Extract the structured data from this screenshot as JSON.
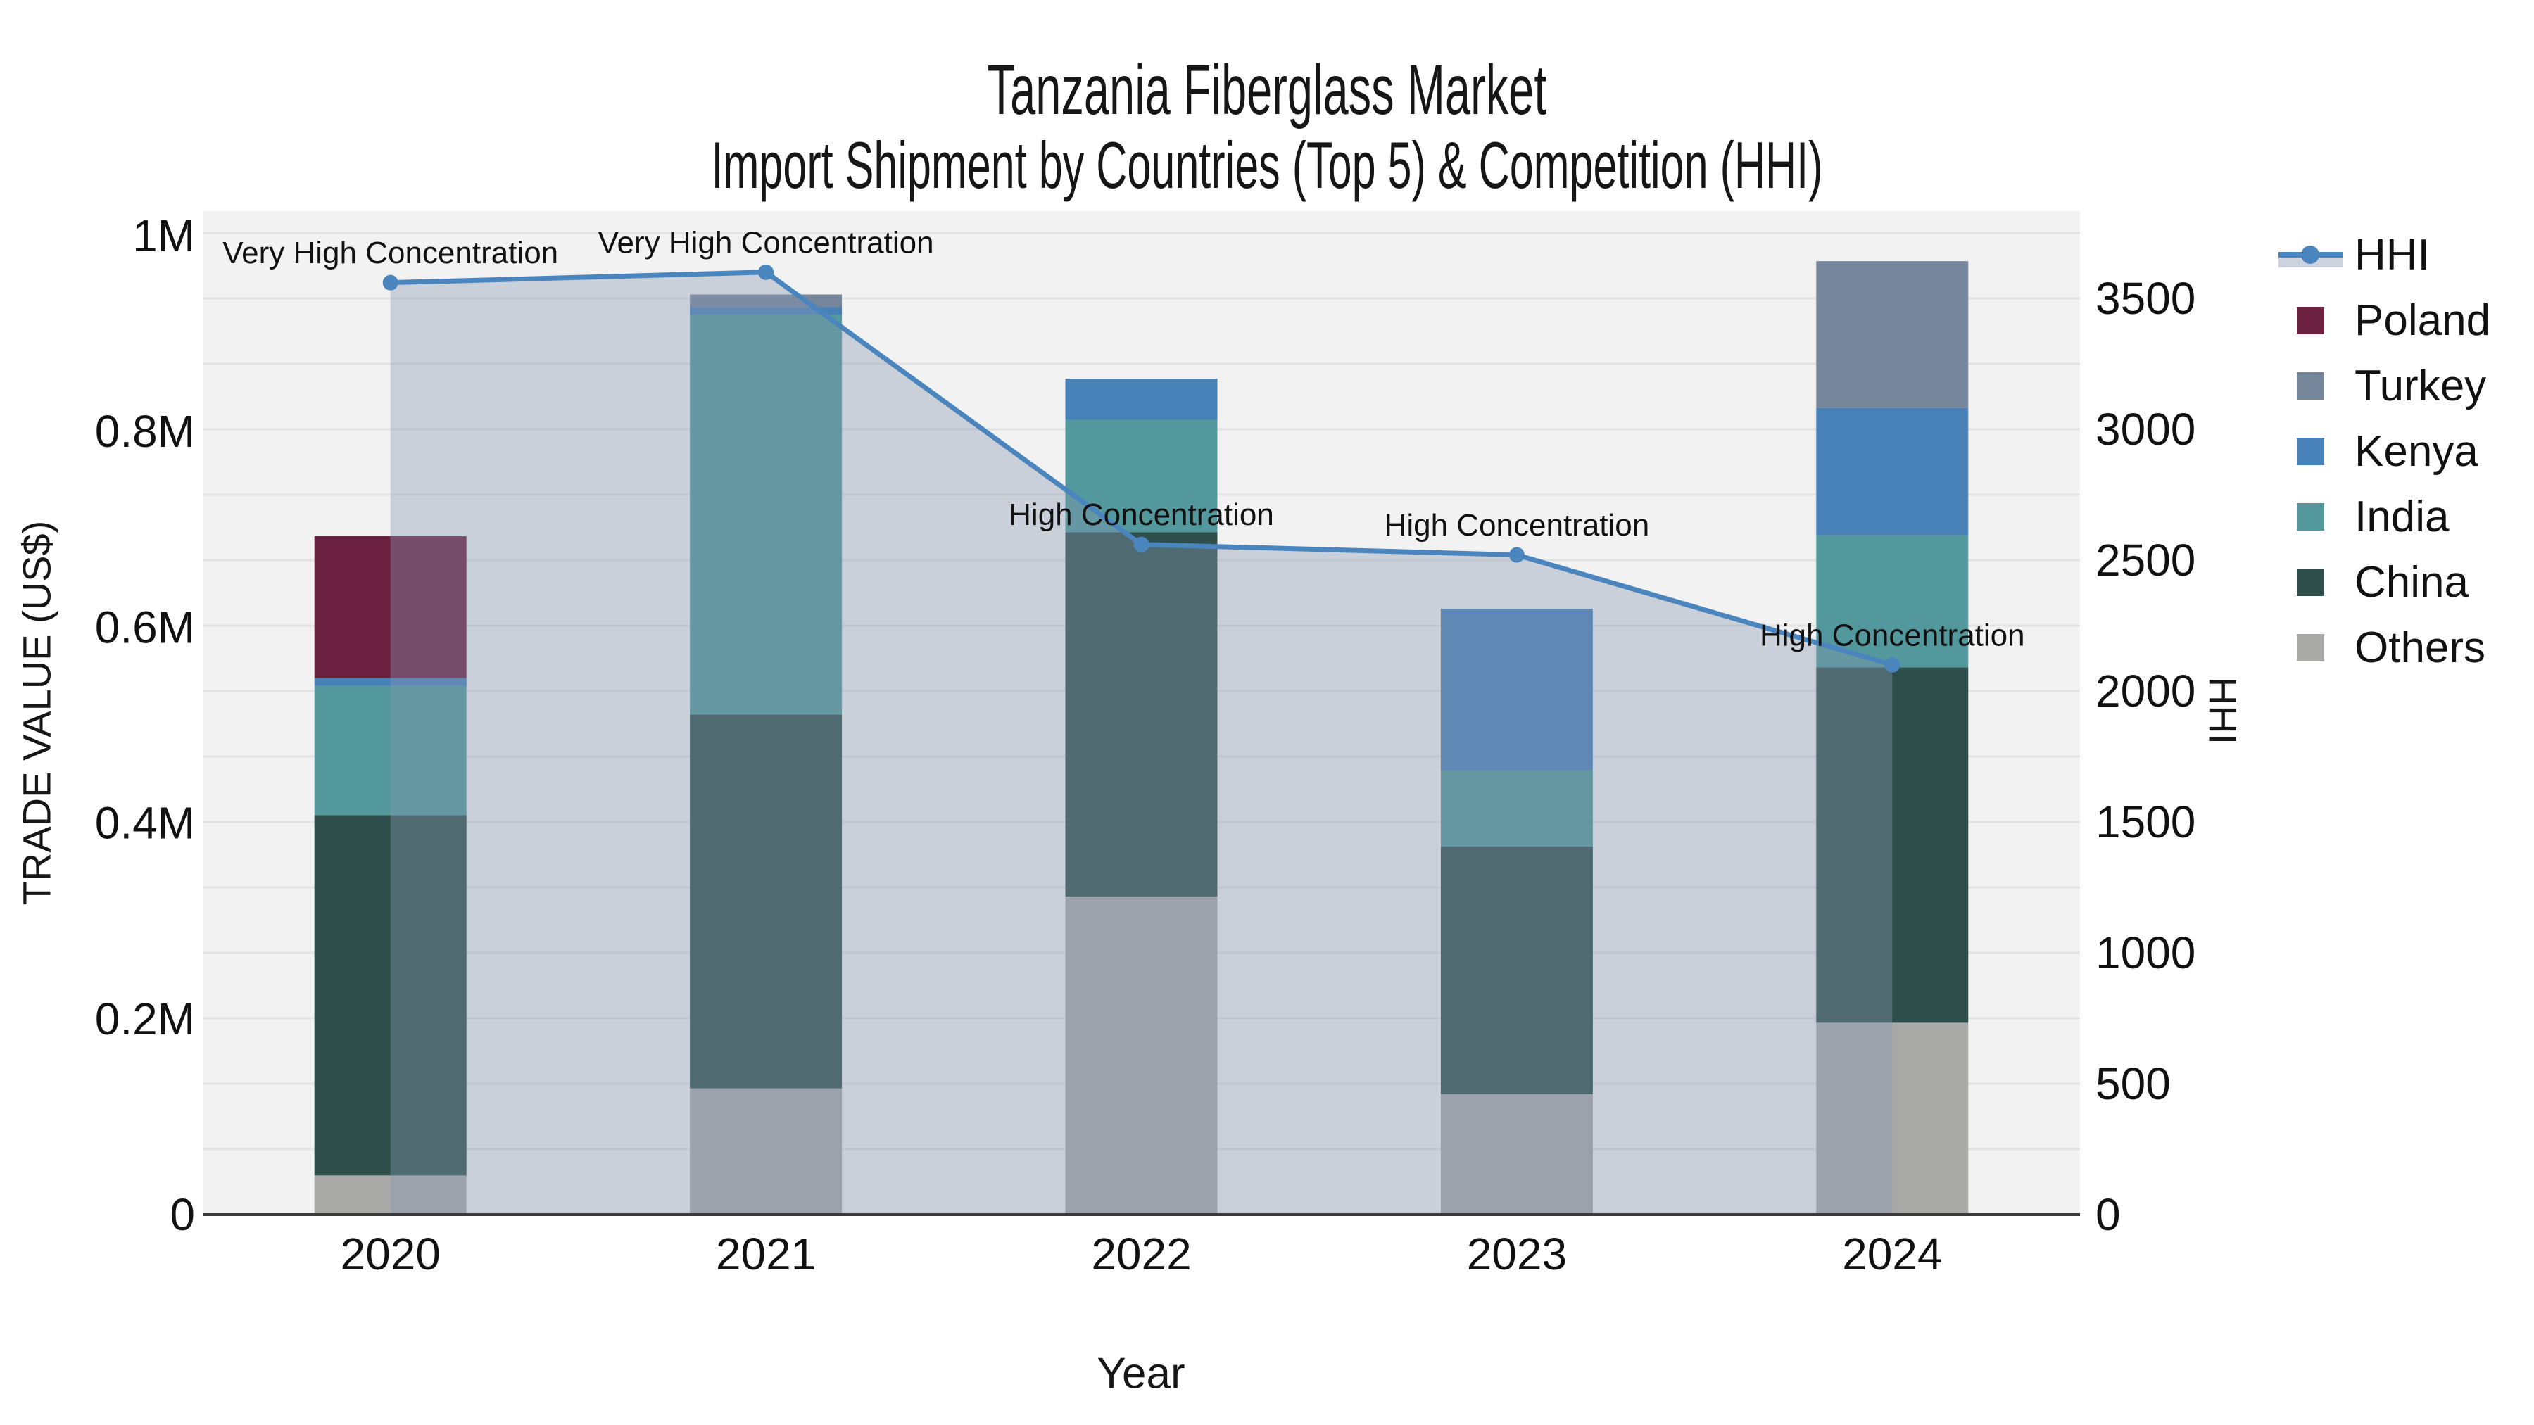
{
  "title": {
    "line1": "Tanzania Fiberglass Market",
    "line2": "Import Shipment by Countries (Top 5) & Competition (HHI)"
  },
  "axes": {
    "x": {
      "title": "Year",
      "tick_labels": [
        "2020",
        "2021",
        "2022",
        "2023",
        "2024"
      ]
    },
    "y_left": {
      "title": "TRADE VALUE (US$)",
      "tick_labels": [
        "0",
        "0.2M",
        "0.4M",
        "0.6M",
        "0.8M",
        "1M"
      ],
      "tick_values": [
        0,
        0.2,
        0.4,
        0.6,
        0.8,
        1.0
      ],
      "range": [
        0,
        1.025
      ]
    },
    "y_right": {
      "title": "HHI",
      "tick_labels": [
        "0",
        "500",
        "1000",
        "1500",
        "2000",
        "2500",
        "3000",
        "3500"
      ],
      "tick_values": [
        0,
        500,
        1000,
        1500,
        2000,
        2500,
        3000,
        3500
      ],
      "range": [
        0,
        3833
      ]
    }
  },
  "legend": {
    "items": [
      {
        "label": "HHI",
        "type": "line",
        "color": "#4a85bd",
        "band_color": "#ccd3de"
      },
      {
        "label": "Poland",
        "type": "swatch",
        "color": "#6b2040"
      },
      {
        "label": "Turkey",
        "type": "swatch",
        "color": "#75859a"
      },
      {
        "label": "Kenya",
        "type": "swatch",
        "color": "#4781b7"
      },
      {
        "label": "India",
        "type": "swatch",
        "color": "#52989c"
      },
      {
        "label": "China",
        "type": "swatch",
        "color": "#2d4e4a"
      },
      {
        "label": "Others",
        "type": "swatch",
        "color": "#a9a9a7"
      }
    ]
  },
  "chart_data": {
    "type": "bar",
    "subtype": "stacked-bars-with-hhi-line-and-area",
    "title": "Tanzania Fiberglass Market — Import Shipment by Countries (Top 5) & Competition (HHI)",
    "xlabel": "Year",
    "ylabel": "TRADE VALUE (US$)",
    "ylabel_right": "HHI",
    "categories": [
      "2020",
      "2021",
      "2022",
      "2023",
      "2024"
    ],
    "value_unit": "US$ millions",
    "series": [
      {
        "name": "Others",
        "color": "#a9a9a7",
        "values": [
          0.04,
          0.129,
          0.325,
          0.123,
          0.196
        ]
      },
      {
        "name": "China",
        "color": "#2d4e4a",
        "values": [
          0.368,
          0.382,
          0.372,
          0.253,
          0.363
        ]
      },
      {
        "name": "India",
        "color": "#52989c",
        "values": [
          0.132,
          0.408,
          0.115,
          0.078,
          0.135
        ]
      },
      {
        "name": "Kenya",
        "color": "#4781b7",
        "values": [
          0.008,
          0.008,
          0.042,
          0.165,
          0.13
        ]
      },
      {
        "name": "Turkey",
        "color": "#75859a",
        "values": [
          0.0,
          0.013,
          0.0,
          0.0,
          0.15
        ]
      },
      {
        "name": "Poland",
        "color": "#6b2040",
        "values": [
          0.145,
          0.0,
          0.0,
          0.0,
          0.0
        ]
      }
    ],
    "stack_totals": [
      0.693,
      0.94,
      0.854,
      0.619,
      0.974
    ],
    "line_series": {
      "name": "HHI",
      "axis": "right",
      "color": "#4a85bd",
      "area_fill": "rgba(136,152,180,0.38)",
      "values": [
        3560,
        3600,
        2560,
        2520,
        2100
      ]
    },
    "annotations": [
      {
        "category": "2020",
        "text": "Very High Concentration"
      },
      {
        "category": "2021",
        "text": "Very High Concentration"
      },
      {
        "category": "2022",
        "text": "High Concentration"
      },
      {
        "category": "2023",
        "text": "High Concentration"
      },
      {
        "category": "2024",
        "text": "High Concentration"
      }
    ],
    "ylim_left": [
      0,
      1.025
    ],
    "ylim_right": [
      0,
      3833
    ],
    "grid": true,
    "legend_position": "right"
  },
  "colors": {
    "figure_bg": "#ffffff",
    "plot_bg": "#f2f2f2",
    "grid": "#e3e3e3",
    "axis_line": "#3b3b3b",
    "text": "#111111"
  }
}
